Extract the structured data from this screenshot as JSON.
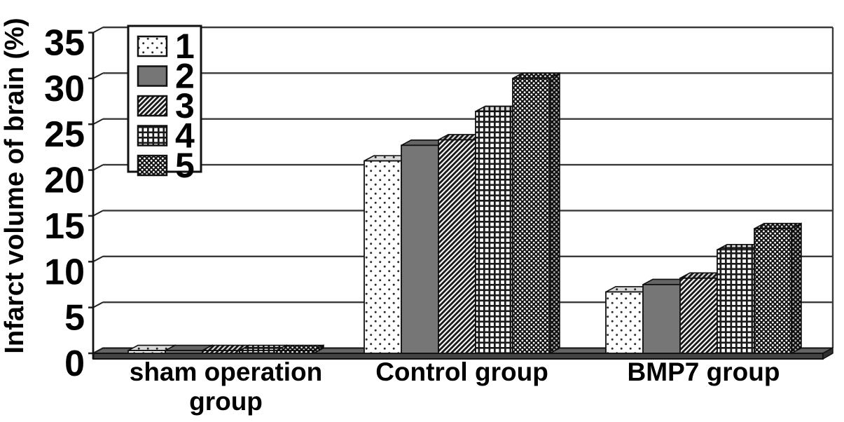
{
  "figure": {
    "kind": "3d-grouped-bar-chart",
    "background": "#ffffff"
  },
  "chart_data": {
    "type": "bar",
    "title": "",
    "xlabel": "",
    "ylabel": "Infarct volume of brain (%)",
    "ylim": [
      0,
      35
    ],
    "ytick_step": 5,
    "yticks": [
      0,
      5,
      10,
      15,
      20,
      25,
      30,
      35
    ],
    "grid": true,
    "legend_position": "top-left",
    "categories": [
      "sham operation group",
      "Control group",
      "BMP7 group"
    ],
    "series": [
      {
        "name": "1",
        "pattern": "white-with-dots",
        "values": [
          0.3,
          21.0,
          6.7
        ]
      },
      {
        "name": "2",
        "pattern": "solid-gray",
        "values": [
          0.3,
          22.7,
          7.5
        ]
      },
      {
        "name": "3",
        "pattern": "diagonal-stripes",
        "values": [
          0.3,
          23.3,
          8.2
        ]
      },
      {
        "name": "4",
        "pattern": "grid-crosshatch",
        "values": [
          0.3,
          26.4,
          11.3
        ]
      },
      {
        "name": "5",
        "pattern": "dark-diamond-check",
        "values": [
          0.3,
          30.0,
          13.6
        ]
      }
    ]
  },
  "colors": {
    "text": "#000000",
    "gridline": "#3a3a3a",
    "outline": "#111111",
    "floor_top": "#646464",
    "floor_front": "#434343",
    "floor_cap": "#2f2f2f",
    "solid_bar_gray": "#767676",
    "pattern_ink": "#1a1a1a",
    "legend_background": "#ffffff"
  }
}
